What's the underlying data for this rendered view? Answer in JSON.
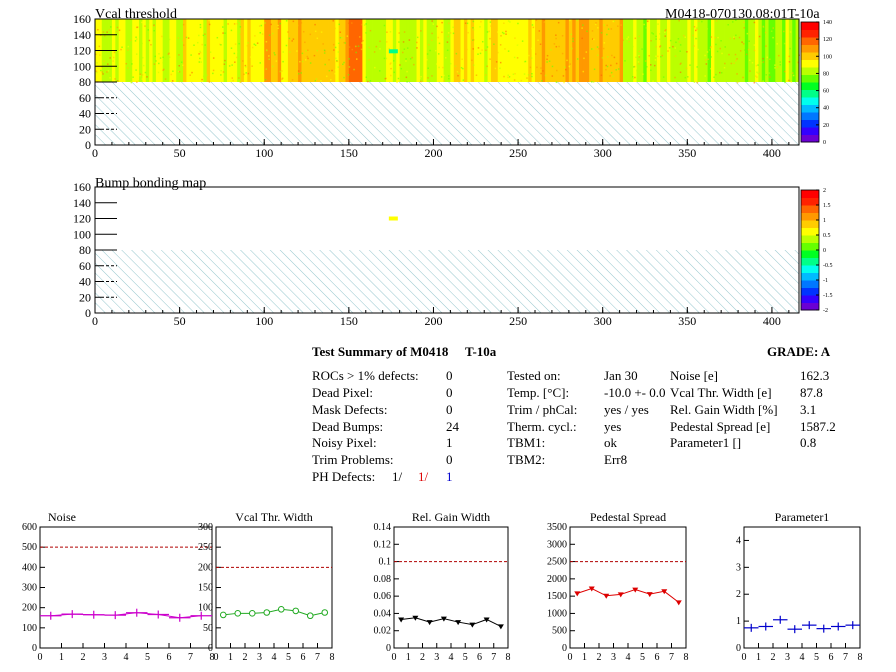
{
  "header": {
    "top_title": "Vcal threshold",
    "module_id": "M0418-070130.08:01T-10a",
    "bump_title": "Bump bonding map"
  },
  "colors": {
    "palette": [
      "#6a00d4",
      "#3300ff",
      "#0033ff",
      "#0077ff",
      "#00bbff",
      "#00ffee",
      "#00ff88",
      "#00ff22",
      "#66ff00",
      "#bbff00",
      "#ffff00",
      "#ffcc00",
      "#ff9900",
      "#ff6600",
      "#ff2200",
      "#ff0000"
    ],
    "hatch": "#7ab7c0",
    "reference_line": "#b00000"
  },
  "chart_data": [
    {
      "id": "vcal-map",
      "type": "heatmap",
      "title": "Vcal threshold",
      "xlim": [
        0,
        416
      ],
      "ylim": [
        0,
        160
      ],
      "xticks": [
        0,
        50,
        100,
        150,
        200,
        250,
        300,
        350,
        400
      ],
      "yticks": [
        0,
        20,
        40,
        60,
        80,
        100,
        120,
        140,
        160
      ],
      "zlim": [
        0,
        140
      ],
      "zticks": [
        "140",
        "120",
        "100",
        "80",
        "60",
        "40",
        "20",
        "0"
      ],
      "column_bands": [
        {
          "x": [
            0,
            52
          ],
          "level": 88
        },
        {
          "x": [
            52,
            100
          ],
          "level": 92
        },
        {
          "x": [
            100,
            110
          ],
          "level": 108
        },
        {
          "x": [
            110,
            150
          ],
          "level": 100
        },
        {
          "x": [
            150,
            158
          ],
          "level": 112
        },
        {
          "x": [
            158,
            208
          ],
          "level": 86
        },
        {
          "x": [
            208,
            260
          ],
          "level": 94
        },
        {
          "x": [
            260,
            312
          ],
          "level": 104
        },
        {
          "x": [
            312,
            416
          ],
          "level": 82
        }
      ],
      "hot_spot": {
        "x": 176,
        "y": 119,
        "level": 60
      },
      "data_rows": [
        80,
        160
      ]
    },
    {
      "id": "bump-map",
      "type": "heatmap",
      "title": "Bump bonding map",
      "xlim": [
        0,
        416
      ],
      "ylim": [
        0,
        160
      ],
      "xticks": [
        0,
        50,
        100,
        150,
        200,
        250,
        300,
        350,
        400
      ],
      "yticks": [
        0,
        20,
        40,
        60,
        80,
        100,
        120,
        140,
        160
      ],
      "zlim": [
        -2,
        2
      ],
      "zticks": [
        "2",
        "1.5",
        "1",
        "0.5",
        "0",
        "-0.5",
        "-1",
        "-1.5",
        "-2"
      ],
      "hot_spot": {
        "x": 176,
        "y": 120,
        "level": 0.5
      }
    },
    {
      "id": "noise",
      "type": "scatter",
      "title": "Noise",
      "xlim": [
        0,
        8
      ],
      "ylim": [
        0,
        600
      ],
      "xticks": [
        "0",
        "1",
        "2",
        "3",
        "4",
        "5",
        "6",
        "7",
        "8"
      ],
      "yticks": [
        "0",
        "100",
        "200",
        "300",
        "400",
        "500",
        "600"
      ],
      "reference": 500,
      "color": "#cc00cc",
      "marker": "cross",
      "x": [
        0.5,
        1.5,
        2.5,
        3.5,
        4.5,
        5.5,
        6.5,
        7.5
      ],
      "y": [
        160,
        168,
        165,
        163,
        175,
        166,
        150,
        160
      ]
    },
    {
      "id": "vcal-width",
      "type": "line",
      "title": "Vcal Thr. Width",
      "xlim": [
        0,
        8
      ],
      "ylim": [
        0,
        300
      ],
      "xticks": [
        "0",
        "1",
        "2",
        "3",
        "4",
        "5",
        "6",
        "7",
        "8"
      ],
      "yticks": [
        "0",
        "50",
        "100",
        "150",
        "200",
        "250",
        "300"
      ],
      "reference": 200,
      "color": "#22aa22",
      "marker": "circle",
      "x": [
        0.5,
        1.5,
        2.5,
        3.5,
        4.5,
        5.5,
        6.5,
        7.5
      ],
      "y": [
        82,
        86,
        86,
        88,
        96,
        92,
        80,
        88
      ]
    },
    {
      "id": "gain-width",
      "type": "line",
      "title": "Rel. Gain Width",
      "xlim": [
        0,
        8
      ],
      "ylim": [
        0,
        0.14
      ],
      "xticks": [
        "0",
        "1",
        "2",
        "3",
        "4",
        "5",
        "6",
        "7",
        "8"
      ],
      "yticks": [
        "0",
        "0.02",
        "0.04",
        "0.06",
        "0.08",
        "0.1",
        "0.12",
        "0.14"
      ],
      "reference": 0.1,
      "color": "#000000",
      "marker": "triangle",
      "x": [
        0.5,
        1.5,
        2.5,
        3.5,
        4.5,
        5.5,
        6.5,
        7.5
      ],
      "y": [
        0.033,
        0.035,
        0.03,
        0.034,
        0.03,
        0.027,
        0.033,
        0.025
      ]
    },
    {
      "id": "pedestal",
      "type": "line",
      "title": "Pedestal Spread",
      "xlim": [
        0,
        8
      ],
      "ylim": [
        0,
        3500
      ],
      "xticks": [
        "0",
        "1",
        "2",
        "3",
        "4",
        "5",
        "6",
        "7",
        "8"
      ],
      "yticks": [
        "0",
        "500",
        "1000",
        "1500",
        "2000",
        "2500",
        "3000",
        "3500"
      ],
      "reference": 2500,
      "color": "#dd0000",
      "marker": "triangle",
      "x": [
        0.5,
        1.5,
        2.5,
        3.5,
        4.5,
        5.5,
        6.5,
        7.5
      ],
      "y": [
        1580,
        1720,
        1510,
        1550,
        1690,
        1560,
        1640,
        1320
      ]
    },
    {
      "id": "parameter1",
      "type": "scatter",
      "title": "Parameter1",
      "xlim": [
        0,
        8
      ],
      "ylim": [
        0,
        4.5
      ],
      "xticks": [
        "0",
        "1",
        "2",
        "3",
        "4",
        "5",
        "6",
        "7",
        "8"
      ],
      "yticks": [
        "0",
        "1",
        "2",
        "3",
        "4"
      ],
      "reference": null,
      "color": "#0000cc",
      "marker": "cross",
      "x": [
        0.5,
        1.5,
        2.5,
        3.5,
        4.5,
        5.5,
        6.5,
        7.5
      ],
      "y": [
        0.75,
        0.8,
        1.05,
        0.7,
        0.85,
        0.72,
        0.8,
        0.85
      ]
    }
  ],
  "summary": {
    "title": "Test Summary of M0418",
    "temp_tag": "T-10a",
    "grade": "GRADE:  A",
    "col1": [
      {
        "label": "ROCs > 1% defects:",
        "value": "0"
      },
      {
        "label": "Dead Pixel:",
        "value": "0"
      },
      {
        "label": "Mask Defects:",
        "value": "0"
      },
      {
        "label": "Dead Bumps:",
        "value": "24"
      },
      {
        "label": "Noisy Pixel:",
        "value": "1"
      },
      {
        "label": "Trim Problems:",
        "value": "0"
      }
    ],
    "ph_defects": {
      "label": "PH Defects:",
      "v1": "1/",
      "v2": "1/",
      "v3": "1"
    },
    "col2": [
      {
        "label": "Tested on:",
        "value": "Jan 30"
      },
      {
        "label": "Temp. [°C]:",
        "value": "-10.0 +- 0.0"
      },
      {
        "label": "Trim / phCal:",
        "value": "yes / yes"
      },
      {
        "label": "Therm. cycl.:",
        "value": "yes"
      },
      {
        "label": "TBM1:",
        "value": "ok"
      },
      {
        "label": "TBM2:",
        "value": "Err8"
      }
    ],
    "col3": [
      {
        "label": "Noise [e]",
        "value": "162.3"
      },
      {
        "label": "Vcal Thr. Width [e]",
        "value": "87.8"
      },
      {
        "label": "Rel. Gain Width [%]",
        "value": "3.1"
      },
      {
        "label": "Pedestal Spread [e]",
        "value": "1587.2"
      },
      {
        "label": "Parameter1 []",
        "value": "0.8"
      }
    ]
  }
}
